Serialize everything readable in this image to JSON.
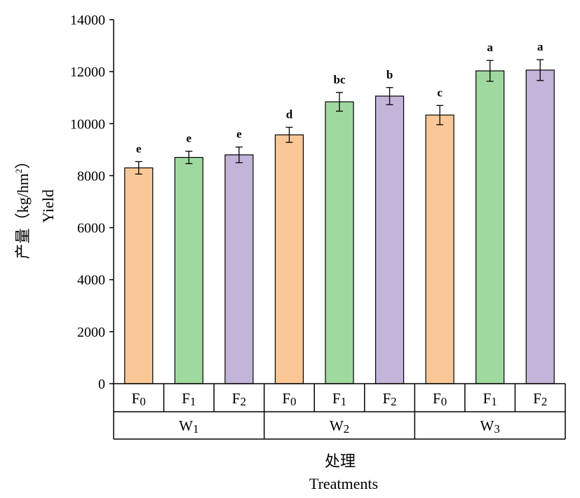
{
  "chart_data": {
    "type": "bar",
    "categories": [
      "F0",
      "F1",
      "F2",
      "F0",
      "F1",
      "F2",
      "F0",
      "F1",
      "F2"
    ],
    "fertilizer_labels": [
      {
        "base": "F",
        "sub": "0"
      },
      {
        "base": "F",
        "sub": "1"
      },
      {
        "base": "F",
        "sub": "2"
      },
      {
        "base": "F",
        "sub": "0"
      },
      {
        "base": "F",
        "sub": "1"
      },
      {
        "base": "F",
        "sub": "2"
      },
      {
        "base": "F",
        "sub": "0"
      },
      {
        "base": "F",
        "sub": "1"
      },
      {
        "base": "F",
        "sub": "2"
      }
    ],
    "groups": [
      {
        "base": "W",
        "sub": "1"
      },
      {
        "base": "W",
        "sub": "2"
      },
      {
        "base": "W",
        "sub": "3"
      }
    ],
    "values": [
      8300,
      8700,
      8800,
      9570,
      10840,
      11060,
      10330,
      12030,
      12060
    ],
    "errors": [
      240,
      240,
      300,
      290,
      360,
      330,
      370,
      400,
      400
    ],
    "significance_letters": [
      "e",
      "e",
      "e",
      "d",
      "bc",
      "b",
      "c",
      "a",
      "a"
    ],
    "colors": [
      "#FAC896",
      "#A0D9A0",
      "#C3B4D9",
      "#FAC896",
      "#A0D9A0",
      "#C3B4D9",
      "#FAC896",
      "#A0D9A0",
      "#C3B4D9"
    ],
    "ylabel_cn": "产量（kg/hm",
    "ylabel_cn_sup": "2",
    "ylabel_cn_end": "）",
    "ylabel_en": "Yield",
    "xlabel_cn": "处理",
    "xlabel_en": "Treatments",
    "ylim": [
      0,
      14000
    ],
    "yticks": [
      0,
      2000,
      4000,
      6000,
      8000,
      10000,
      12000,
      14000
    ],
    "grid": false
  }
}
